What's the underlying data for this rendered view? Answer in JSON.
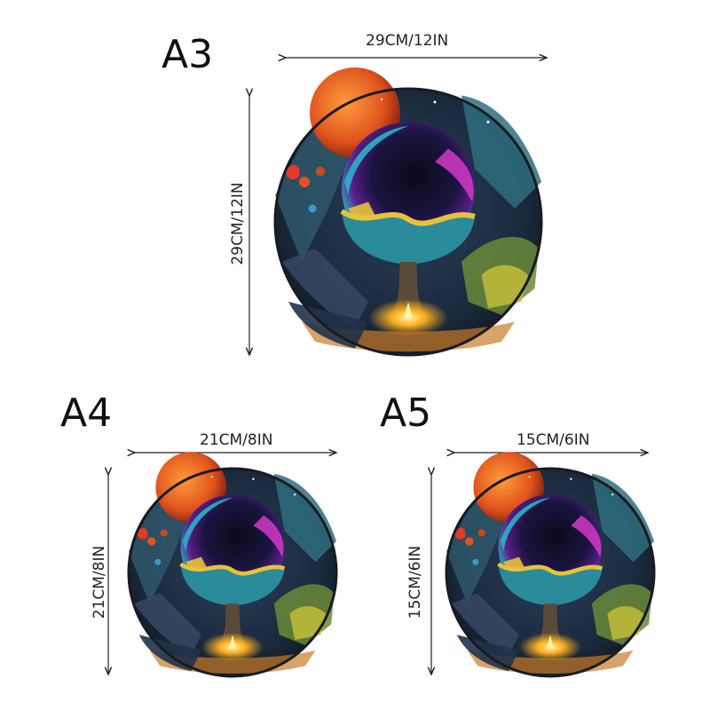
{
  "variants": [
    {
      "label": "A3",
      "width_text": "29CM/12IN",
      "height_text": "29CM/12IN"
    },
    {
      "label": "A4",
      "width_text": "21CM/8IN",
      "height_text": "21CM/8IN"
    },
    {
      "label": "A5",
      "width_text": "15CM/6IN",
      "height_text": "15CM/6IN"
    }
  ],
  "colors": {
    "frame": "#1a1a22",
    "artwork_dark": "#1b2b3e",
    "planet_orange": "#e0541e",
    "orb_blue": "#2bb3c8",
    "orb_purple": "#5a1f8a",
    "wave_yellow": "#e8c23a",
    "wave_teal": "#2a8c9a",
    "fire_glow": "#ffb020"
  }
}
